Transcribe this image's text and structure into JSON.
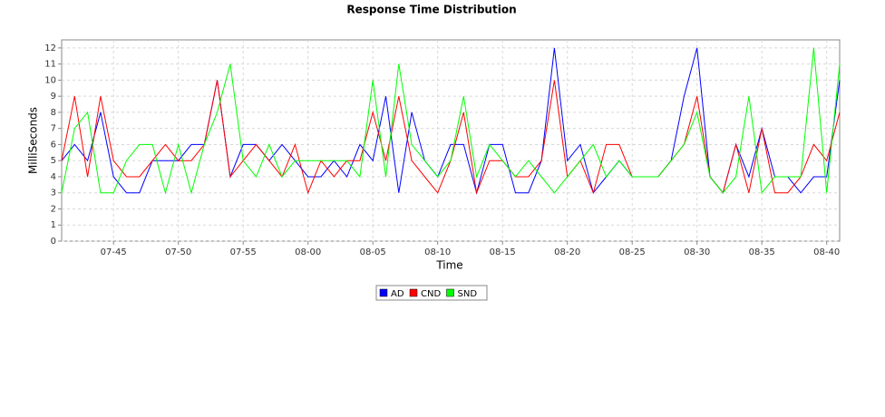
{
  "chart_data": {
    "type": "line",
    "title": "Response Time Distribution",
    "x_label": "Time",
    "y_label": "MilliSeconds",
    "x": [
      "07-41",
      "07-42",
      "07-43",
      "07-44",
      "07-45",
      "07-46",
      "07-47",
      "07-48",
      "07-49",
      "07-50",
      "07-51",
      "07-52",
      "07-53",
      "07-54",
      "07-55",
      "07-56",
      "07-57",
      "07-58",
      "07-59",
      "08-00",
      "08-01",
      "08-02",
      "08-03",
      "08-04",
      "08-05",
      "08-06",
      "08-07",
      "08-08",
      "08-09",
      "08-10",
      "08-11",
      "08-12",
      "08-13",
      "08-14",
      "08-15",
      "08-16",
      "08-17",
      "08-18",
      "08-19",
      "08-20",
      "08-21",
      "08-22",
      "08-23",
      "08-24",
      "08-25",
      "08-26",
      "08-27",
      "08-28",
      "08-29",
      "08-30",
      "08-31",
      "08-32",
      "08-33",
      "08-34",
      "08-35",
      "08-36",
      "08-37",
      "08-38",
      "08-39",
      "08-40",
      "08-41"
    ],
    "series": [
      {
        "name": "AD",
        "color": "#0000ff",
        "values": [
          5,
          6,
          5,
          8,
          4,
          3,
          3,
          5,
          5,
          5,
          6,
          6,
          10,
          4,
          6,
          6,
          5,
          6,
          5,
          4,
          4,
          5,
          4,
          6,
          5,
          9,
          3,
          8,
          5,
          4,
          6,
          6,
          3,
          6,
          6,
          3,
          3,
          5,
          12,
          5,
          6,
          3,
          4,
          5,
          4,
          4,
          4,
          5,
          9,
          12,
          4,
          3,
          6,
          4,
          7,
          4,
          4,
          3,
          4,
          4,
          10
        ]
      },
      {
        "name": "CND",
        "color": "#ff0000",
        "values": [
          5,
          9,
          4,
          9,
          5,
          4,
          4,
          5,
          6,
          5,
          5,
          6,
          10,
          4,
          5,
          6,
          5,
          4,
          6,
          3,
          5,
          4,
          5,
          5,
          8,
          5,
          9,
          5,
          4,
          3,
          5,
          8,
          3,
          5,
          5,
          4,
          4,
          5,
          10,
          4,
          5,
          3,
          6,
          6,
          4,
          4,
          4,
          5,
          6,
          9,
          4,
          3,
          6,
          3,
          7,
          3,
          3,
          4,
          6,
          5,
          8
        ]
      },
      {
        "name": "SND",
        "color": "#00ff00",
        "values": [
          3,
          7,
          8,
          3,
          3,
          5,
          6,
          6,
          3,
          6,
          3,
          6,
          8,
          11,
          5,
          4,
          6,
          4,
          5,
          5,
          5,
          5,
          5,
          4,
          10,
          4,
          11,
          6,
          5,
          4,
          5,
          9,
          4,
          6,
          5,
          4,
          5,
          4,
          3,
          4,
          5,
          6,
          4,
          5,
          4,
          4,
          4,
          5,
          6,
          8,
          4,
          3,
          4,
          9,
          3,
          4,
          4,
          4,
          12,
          3,
          11
        ]
      }
    ],
    "xlim": [
      "07-41",
      "08-41"
    ],
    "xticks": [
      "07-45",
      "07-50",
      "07-55",
      "08-00",
      "08-05",
      "08-10",
      "08-15",
      "08-20",
      "08-25",
      "08-30",
      "08-35",
      "08-40"
    ],
    "ylim": [
      0,
      12.5
    ],
    "yticks": [
      0,
      1,
      2,
      3,
      4,
      5,
      6,
      7,
      8,
      9,
      10,
      11,
      12
    ],
    "grid": true
  }
}
